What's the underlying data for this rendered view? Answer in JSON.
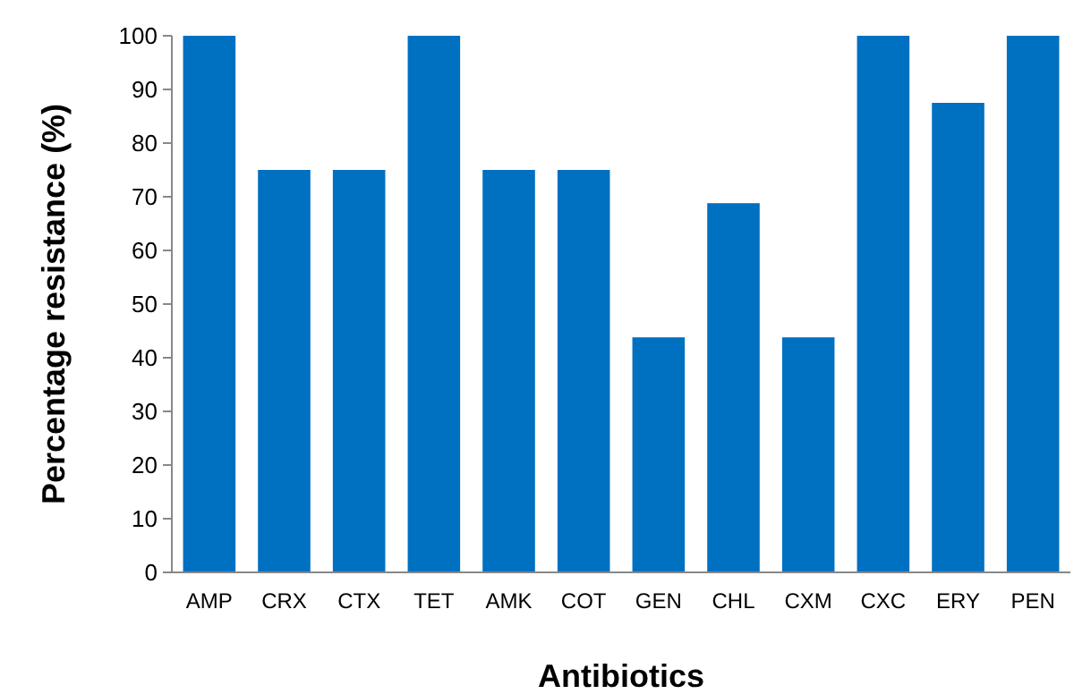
{
  "chart_data": {
    "type": "bar",
    "xlabel": "Antibiotics",
    "ylabel": "Percentage resistance (%)",
    "categories": [
      "AMP",
      "CRX",
      "CTX",
      "TET",
      "AMK",
      "COT",
      "GEN",
      "CHL",
      "CXM",
      "CXC",
      "ERY",
      "PEN"
    ],
    "values": [
      100,
      75,
      75,
      100,
      75,
      75,
      43.8,
      68.8,
      43.8,
      100,
      87.5,
      100
    ],
    "color": "#0070c0",
    "ylim": [
      0,
      100
    ],
    "yticks": [
      0,
      10,
      20,
      30,
      40,
      50,
      60,
      70,
      80,
      90,
      100
    ],
    "grid": false
  }
}
